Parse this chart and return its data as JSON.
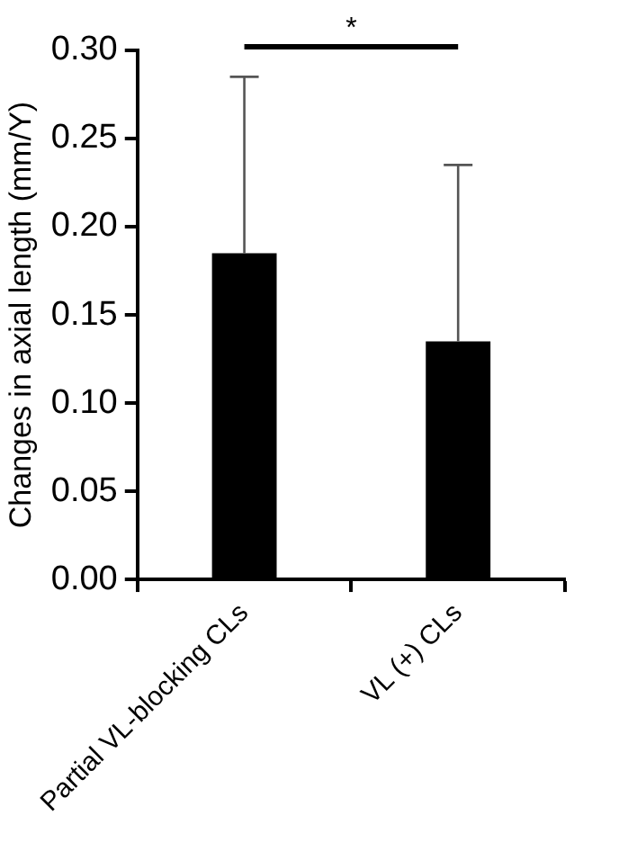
{
  "chart_data": {
    "type": "bar",
    "ylabel": "Changes in axial length (mm/Y)",
    "categories": [
      "Partial VL-blocking CLs",
      "VL (+) CLs"
    ],
    "values": [
      0.185,
      0.135
    ],
    "color": "#000000",
    "errors": [
      [
        0.185,
        0.285
      ],
      [
        0.135,
        0.235
      ]
    ],
    "ylim": [
      0,
      0.3
    ],
    "yticks": [
      {
        "value": 0,
        "label": "0.00"
      },
      {
        "value": 0.05,
        "label": "0.05"
      },
      {
        "value": 0.1,
        "label": "0.10"
      },
      {
        "value": 0.15,
        "label": "0.15"
      },
      {
        "value": 0.2,
        "label": "0.20"
      },
      {
        "value": 0.25,
        "label": "0.25"
      },
      {
        "value": 0.3,
        "label": "0.30"
      }
    ],
    "annotations": [
      "*"
    ],
    "grid": false,
    "legend": false
  }
}
